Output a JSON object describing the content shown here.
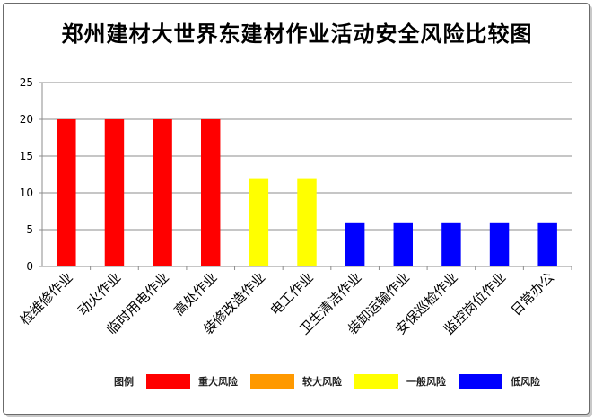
{
  "chart_data": {
    "type": "bar",
    "title": "郑州建材大世界东建材作业活动安全风险比较图",
    "xlabel": "",
    "ylabel": "",
    "ylim": [
      0,
      25
    ],
    "yticks": [
      0,
      5,
      10,
      15,
      20,
      25
    ],
    "grid": true,
    "legend_position": "bottom",
    "categories": [
      "检维修作业",
      "动火作业",
      "临时用电作业",
      "高处作业",
      "装修改造作业",
      "电工作业",
      "卫生清洁作业",
      "装卸运输作业",
      "安保巡检作业",
      "监控岗位作业",
      "日常办公"
    ],
    "values": [
      20,
      20,
      20,
      20,
      12,
      12,
      6,
      6,
      6,
      6,
      6
    ],
    "levels": [
      "重大风险",
      "重大风险",
      "重大风险",
      "重大风险",
      "一般风险",
      "一般风险",
      "低风险",
      "低风险",
      "低风险",
      "低风险",
      "低风险"
    ],
    "legend_title": "图例",
    "legend": [
      {
        "label": "重大风险",
        "color": "#ff0000"
      },
      {
        "label": "较大风险",
        "color": "#ff9900"
      },
      {
        "label": "一般风险",
        "color": "#ffff00"
      },
      {
        "label": "低风险",
        "color": "#0000ff"
      }
    ]
  }
}
